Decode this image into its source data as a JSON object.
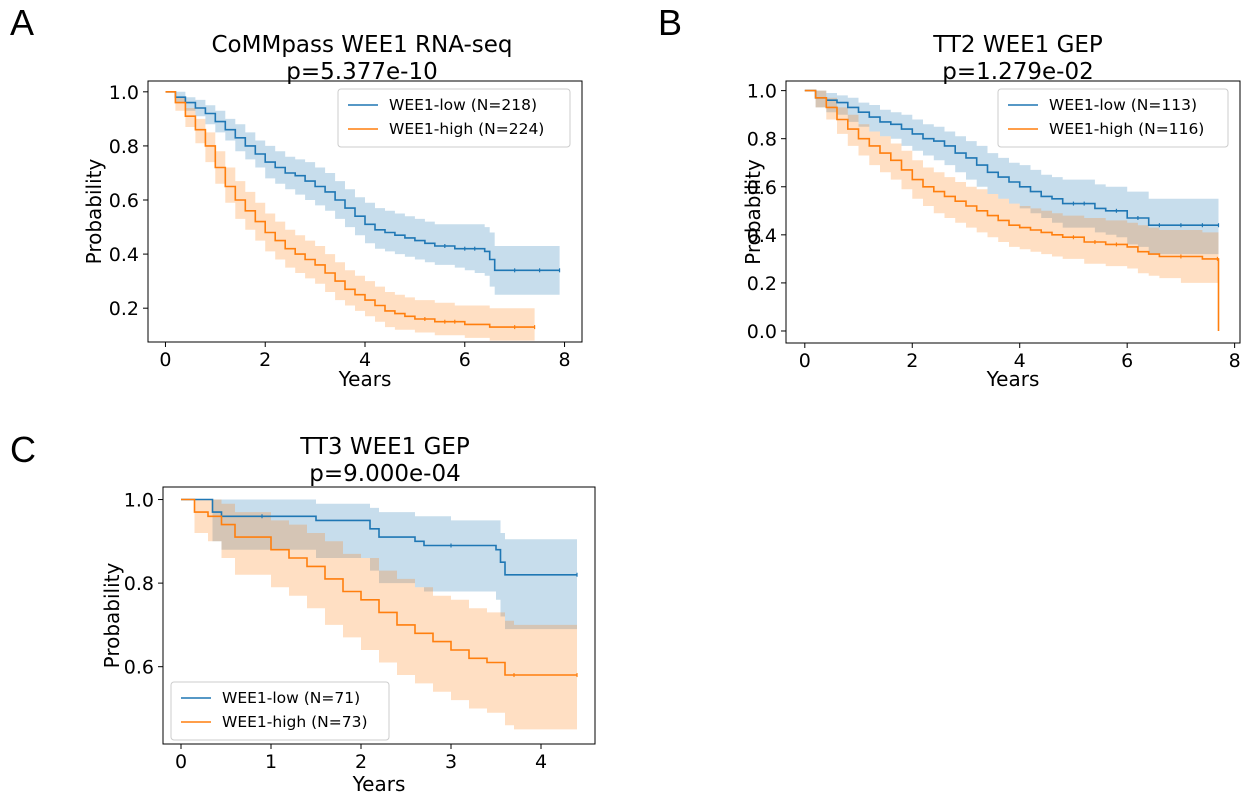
{
  "panel_letters": [
    "A",
    "B",
    "C"
  ],
  "colors": {
    "low": "#1f77b4",
    "high": "#ff7f0e"
  },
  "chart_data": [
    {
      "type": "line",
      "title": "CoMMpass WEE1 RNA-seq",
      "subtitle": "p=5.377e-10",
      "xlabel": "Years",
      "ylabel": "Probability",
      "xlim": [
        -0.35,
        8.35
      ],
      "ylim": [
        0.075,
        1.04
      ],
      "xticks": [
        0,
        2,
        4,
        6,
        8
      ],
      "yticks": [
        0.2,
        0.4,
        0.6,
        0.8,
        1.0
      ],
      "xtick_labels": [
        "0",
        "2",
        "4",
        "6",
        "8"
      ],
      "ytick_labels": [
        "0.2",
        "0.4",
        "0.6",
        "0.8",
        "1.0"
      ],
      "legend_position": "upper-right",
      "series": [
        {
          "name": "WEE1-low (N=218)",
          "color": "#1f77b4",
          "x": [
            0,
            0.2,
            0.4,
            0.6,
            0.8,
            1.0,
            1.2,
            1.4,
            1.6,
            1.8,
            2.0,
            2.2,
            2.4,
            2.6,
            2.8,
            3.0,
            3.2,
            3.4,
            3.6,
            3.8,
            4.0,
            4.2,
            4.4,
            4.6,
            4.8,
            5.0,
            5.2,
            5.4,
            5.6,
            5.8,
            6.0,
            6.2,
            6.4,
            6.5,
            6.6,
            7.0,
            7.5,
            7.9
          ],
          "y": [
            1.0,
            0.98,
            0.96,
            0.94,
            0.92,
            0.89,
            0.86,
            0.83,
            0.8,
            0.77,
            0.74,
            0.72,
            0.7,
            0.69,
            0.67,
            0.65,
            0.63,
            0.6,
            0.57,
            0.54,
            0.51,
            0.49,
            0.48,
            0.47,
            0.46,
            0.45,
            0.44,
            0.43,
            0.43,
            0.42,
            0.42,
            0.42,
            0.41,
            0.38,
            0.34,
            0.34,
            0.34,
            0.34
          ],
          "ci_upper": [
            1.0,
            1.0,
            0.98,
            0.97,
            0.95,
            0.93,
            0.9,
            0.88,
            0.85,
            0.82,
            0.8,
            0.78,
            0.76,
            0.75,
            0.74,
            0.72,
            0.7,
            0.67,
            0.64,
            0.61,
            0.59,
            0.57,
            0.56,
            0.55,
            0.54,
            0.53,
            0.52,
            0.51,
            0.51,
            0.51,
            0.51,
            0.51,
            0.5,
            0.48,
            0.43,
            0.43,
            0.43,
            0.43
          ],
          "ci_lower": [
            1.0,
            0.96,
            0.93,
            0.91,
            0.88,
            0.85,
            0.82,
            0.78,
            0.75,
            0.72,
            0.68,
            0.66,
            0.64,
            0.62,
            0.6,
            0.58,
            0.56,
            0.53,
            0.5,
            0.47,
            0.44,
            0.42,
            0.41,
            0.4,
            0.39,
            0.38,
            0.37,
            0.36,
            0.36,
            0.35,
            0.34,
            0.33,
            0.32,
            0.28,
            0.25,
            0.25,
            0.25,
            0.25
          ]
        },
        {
          "name": "WEE1-high (N=224)",
          "color": "#ff7f0e",
          "x": [
            0,
            0.2,
            0.4,
            0.6,
            0.8,
            1.0,
            1.2,
            1.4,
            1.6,
            1.8,
            2.0,
            2.2,
            2.4,
            2.6,
            2.8,
            3.0,
            3.2,
            3.4,
            3.6,
            3.8,
            4.0,
            4.2,
            4.4,
            4.6,
            4.8,
            5.0,
            5.2,
            5.4,
            5.6,
            5.8,
            6.0,
            6.5,
            7.0,
            7.4
          ],
          "y": [
            1.0,
            0.96,
            0.91,
            0.86,
            0.8,
            0.72,
            0.65,
            0.6,
            0.56,
            0.52,
            0.48,
            0.45,
            0.42,
            0.4,
            0.38,
            0.36,
            0.33,
            0.3,
            0.27,
            0.25,
            0.23,
            0.21,
            0.19,
            0.18,
            0.17,
            0.16,
            0.16,
            0.15,
            0.15,
            0.15,
            0.14,
            0.13,
            0.13,
            0.13
          ],
          "ci_upper": [
            1.0,
            0.98,
            0.94,
            0.9,
            0.85,
            0.78,
            0.72,
            0.67,
            0.63,
            0.59,
            0.55,
            0.52,
            0.49,
            0.47,
            0.45,
            0.43,
            0.4,
            0.37,
            0.34,
            0.32,
            0.3,
            0.28,
            0.26,
            0.25,
            0.24,
            0.23,
            0.23,
            0.22,
            0.22,
            0.21,
            0.21,
            0.2,
            0.2,
            0.2
          ],
          "ci_lower": [
            1.0,
            0.93,
            0.87,
            0.81,
            0.74,
            0.66,
            0.59,
            0.53,
            0.49,
            0.45,
            0.41,
            0.38,
            0.35,
            0.33,
            0.31,
            0.29,
            0.26,
            0.23,
            0.21,
            0.19,
            0.17,
            0.15,
            0.13,
            0.12,
            0.12,
            0.11,
            0.11,
            0.1,
            0.1,
            0.1,
            0.09,
            0.08,
            0.08,
            0.08
          ]
        }
      ]
    },
    {
      "type": "line",
      "title": "TT2 WEE1 GEP",
      "subtitle": "p=1.279e-02",
      "xlabel": "Years",
      "ylabel": "Probability",
      "xlim": [
        -0.35,
        8.1
      ],
      "ylim": [
        -0.05,
        1.04
      ],
      "xticks": [
        0,
        2,
        4,
        6,
        8
      ],
      "yticks": [
        0.0,
        0.2,
        0.4,
        0.6,
        0.8,
        1.0
      ],
      "xtick_labels": [
        "0",
        "2",
        "4",
        "6",
        "8"
      ],
      "ytick_labels": [
        "0.0",
        "0.2",
        "0.4",
        "0.6",
        "0.8",
        "1.0"
      ],
      "legend_position": "upper-right",
      "series": [
        {
          "name": "WEE1-low (N=113)",
          "color": "#1f77b4",
          "x": [
            0,
            0.2,
            0.4,
            0.6,
            0.8,
            1.0,
            1.2,
            1.4,
            1.6,
            1.8,
            2.0,
            2.2,
            2.4,
            2.6,
            2.8,
            3.0,
            3.2,
            3.4,
            3.6,
            3.8,
            4.0,
            4.2,
            4.4,
            4.6,
            4.8,
            5.0,
            5.2,
            5.4,
            5.6,
            5.8,
            6.0,
            6.2,
            6.4,
            6.6,
            7.0,
            7.4,
            7.7
          ],
          "y": [
            1.0,
            0.97,
            0.96,
            0.95,
            0.93,
            0.91,
            0.89,
            0.87,
            0.86,
            0.84,
            0.82,
            0.8,
            0.79,
            0.77,
            0.74,
            0.72,
            0.69,
            0.66,
            0.64,
            0.62,
            0.6,
            0.58,
            0.56,
            0.55,
            0.53,
            0.53,
            0.53,
            0.51,
            0.5,
            0.5,
            0.47,
            0.47,
            0.44,
            0.44,
            0.44,
            0.44,
            0.44
          ],
          "ci_upper": [
            1.0,
            1.0,
            0.99,
            0.98,
            0.97,
            0.95,
            0.94,
            0.92,
            0.91,
            0.9,
            0.88,
            0.86,
            0.85,
            0.83,
            0.81,
            0.79,
            0.77,
            0.74,
            0.72,
            0.7,
            0.69,
            0.67,
            0.65,
            0.64,
            0.63,
            0.63,
            0.63,
            0.61,
            0.6,
            0.6,
            0.58,
            0.58,
            0.55,
            0.55,
            0.55,
            0.55,
            0.55
          ],
          "ci_lower": [
            1.0,
            0.93,
            0.91,
            0.9,
            0.87,
            0.85,
            0.83,
            0.81,
            0.8,
            0.77,
            0.75,
            0.73,
            0.71,
            0.69,
            0.66,
            0.63,
            0.6,
            0.57,
            0.55,
            0.53,
            0.51,
            0.49,
            0.47,
            0.45,
            0.43,
            0.43,
            0.43,
            0.41,
            0.4,
            0.39,
            0.36,
            0.35,
            0.32,
            0.32,
            0.32,
            0.32,
            0.32
          ]
        },
        {
          "name": "WEE1-high (N=116)",
          "color": "#ff7f0e",
          "x": [
            0,
            0.2,
            0.4,
            0.6,
            0.8,
            1.0,
            1.2,
            1.4,
            1.6,
            1.8,
            2.0,
            2.2,
            2.4,
            2.6,
            2.8,
            3.0,
            3.2,
            3.4,
            3.6,
            3.8,
            4.0,
            4.2,
            4.4,
            4.6,
            4.8,
            5.0,
            5.2,
            5.4,
            5.6,
            5.8,
            6.0,
            6.2,
            6.4,
            6.6,
            7.0,
            7.4,
            7.68,
            7.7
          ],
          "y": [
            1.0,
            0.97,
            0.93,
            0.88,
            0.84,
            0.8,
            0.77,
            0.74,
            0.71,
            0.67,
            0.63,
            0.6,
            0.58,
            0.56,
            0.54,
            0.52,
            0.5,
            0.48,
            0.46,
            0.44,
            0.43,
            0.42,
            0.41,
            0.4,
            0.39,
            0.39,
            0.37,
            0.37,
            0.36,
            0.36,
            0.35,
            0.33,
            0.32,
            0.31,
            0.31,
            0.3,
            0.3,
            0.0
          ],
          "ci_upper": [
            1.0,
            1.0,
            0.97,
            0.93,
            0.9,
            0.86,
            0.83,
            0.81,
            0.78,
            0.75,
            0.71,
            0.68,
            0.66,
            0.64,
            0.62,
            0.6,
            0.59,
            0.57,
            0.55,
            0.53,
            0.52,
            0.51,
            0.5,
            0.49,
            0.48,
            0.48,
            0.47,
            0.47,
            0.46,
            0.46,
            0.45,
            0.44,
            0.43,
            0.42,
            0.42,
            0.41,
            0.41,
            0.41
          ],
          "ci_lower": [
            1.0,
            0.93,
            0.88,
            0.82,
            0.77,
            0.73,
            0.69,
            0.66,
            0.63,
            0.59,
            0.55,
            0.52,
            0.49,
            0.47,
            0.45,
            0.43,
            0.41,
            0.39,
            0.37,
            0.35,
            0.34,
            0.33,
            0.32,
            0.31,
            0.3,
            0.3,
            0.28,
            0.28,
            0.27,
            0.27,
            0.26,
            0.24,
            0.23,
            0.22,
            0.2,
            0.2,
            0.2,
            0.2
          ]
        }
      ]
    },
    {
      "type": "line",
      "title": "TT3 WEE1 GEP",
      "subtitle": "p=9.000e-04",
      "xlabel": "Years",
      "ylabel": "Probability",
      "xlim": [
        -0.2,
        4.6
      ],
      "ylim": [
        0.415,
        1.03
      ],
      "xticks": [
        0,
        1,
        2,
        3,
        4
      ],
      "yticks": [
        0.6,
        0.8,
        1.0
      ],
      "xtick_labels": [
        "0",
        "1",
        "2",
        "3",
        "4"
      ],
      "ytick_labels": [
        "0.6",
        "0.8",
        "1.0"
      ],
      "legend_position": "lower-left",
      "series": [
        {
          "name": "WEE1-low (N=71)",
          "color": "#1f77b4",
          "x": [
            0,
            0.35,
            0.45,
            0.9,
            1.5,
            2.1,
            2.2,
            2.6,
            2.7,
            3.0,
            3.5,
            3.55,
            3.6,
            4.4
          ],
          "y": [
            1.0,
            0.97,
            0.96,
            0.96,
            0.95,
            0.93,
            0.91,
            0.9,
            0.89,
            0.89,
            0.88,
            0.85,
            0.82,
            0.82
          ],
          "ci_upper": [
            1.0,
            1.0,
            1.0,
            1.0,
            0.99,
            0.98,
            0.97,
            0.96,
            0.96,
            0.95,
            0.95,
            0.92,
            0.905,
            0.905
          ],
          "ci_lower": [
            1.0,
            0.9,
            0.88,
            0.88,
            0.86,
            0.83,
            0.8,
            0.79,
            0.78,
            0.78,
            0.76,
            0.72,
            0.69,
            0.69
          ]
        },
        {
          "name": "WEE1-high (N=73)",
          "color": "#ff7f0e",
          "x": [
            0,
            0.15,
            0.3,
            0.45,
            0.6,
            1.0,
            1.2,
            1.4,
            1.6,
            1.8,
            2.0,
            2.2,
            2.4,
            2.6,
            2.8,
            3.0,
            3.2,
            3.4,
            3.6,
            3.7,
            4.4
          ],
          "y": [
            1.0,
            0.97,
            0.96,
            0.94,
            0.91,
            0.88,
            0.86,
            0.84,
            0.81,
            0.78,
            0.76,
            0.73,
            0.7,
            0.68,
            0.66,
            0.64,
            0.62,
            0.61,
            0.58,
            0.58,
            0.58
          ],
          "ci_upper": [
            1.0,
            1.0,
            1.0,
            0.99,
            0.97,
            0.95,
            0.94,
            0.92,
            0.9,
            0.87,
            0.86,
            0.83,
            0.81,
            0.79,
            0.77,
            0.76,
            0.74,
            0.73,
            0.71,
            0.7,
            0.7
          ],
          "ci_lower": [
            1.0,
            0.92,
            0.9,
            0.86,
            0.82,
            0.79,
            0.77,
            0.74,
            0.7,
            0.67,
            0.64,
            0.61,
            0.58,
            0.56,
            0.54,
            0.52,
            0.5,
            0.49,
            0.46,
            0.45,
            0.45
          ]
        }
      ]
    }
  ]
}
